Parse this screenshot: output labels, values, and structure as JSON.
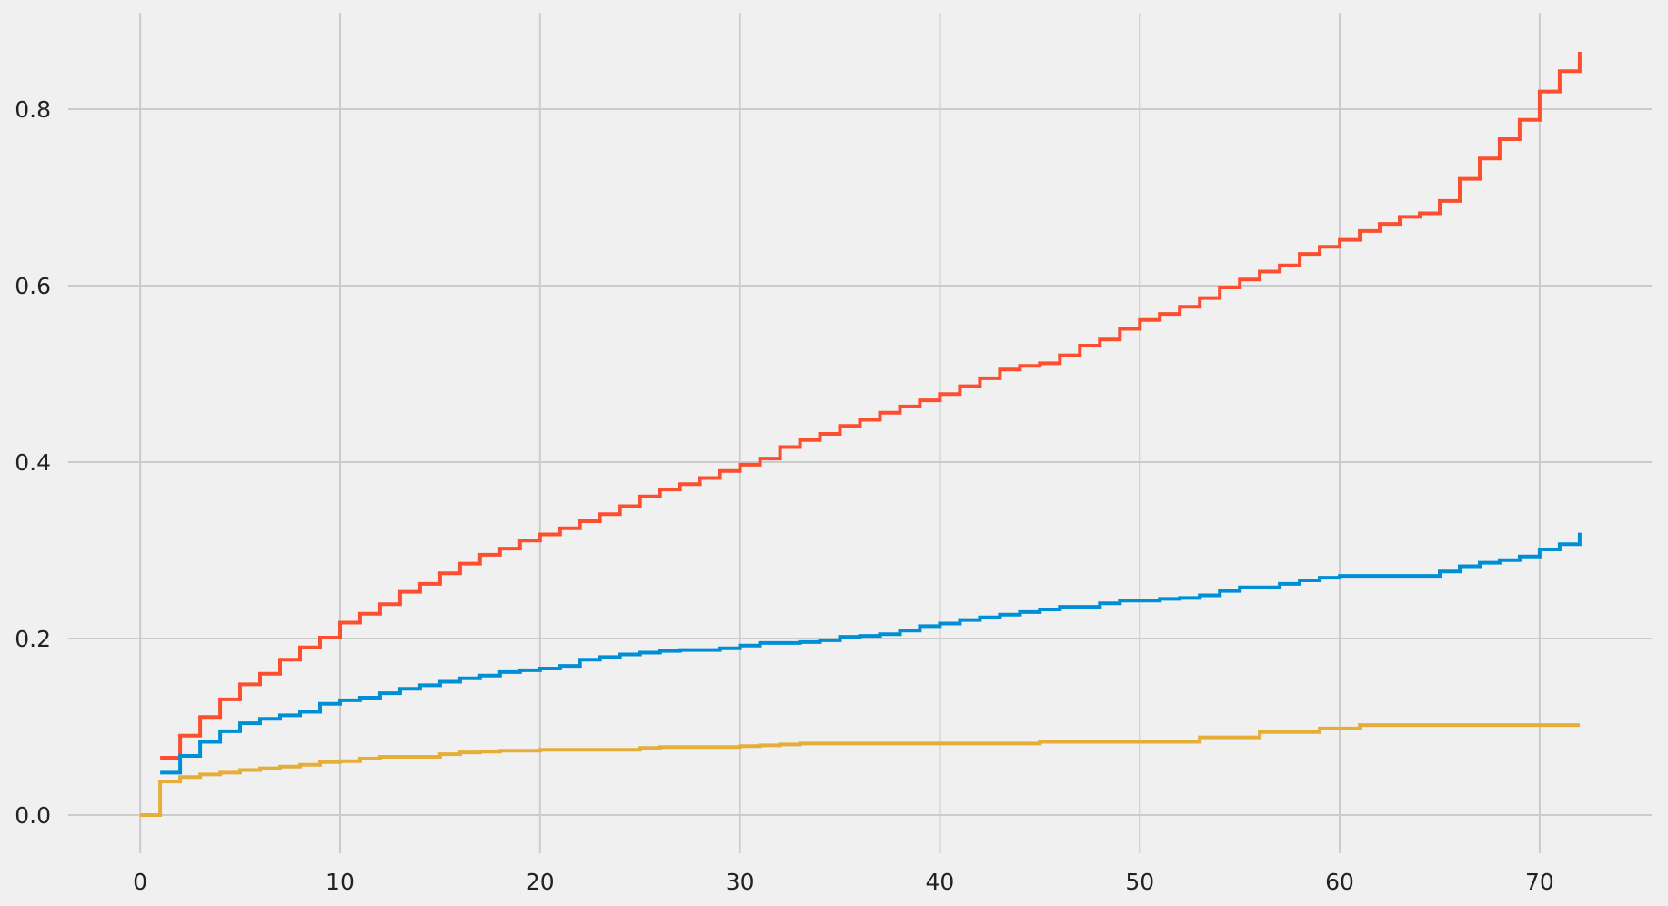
{
  "chart_data": {
    "type": "line",
    "step": "post",
    "title": "",
    "xlabel": "",
    "ylabel": "",
    "xlim": [
      -3.6,
      75.6
    ],
    "ylim": [
      -0.0433,
      0.9093
    ],
    "grid": true,
    "legend": "none",
    "xticks": [
      0,
      10,
      20,
      30,
      40,
      50,
      60,
      70
    ],
    "xtick_labels": [
      "0",
      "10",
      "20",
      "30",
      "40",
      "50",
      "60",
      "70"
    ],
    "yticks": [
      0.0,
      0.2,
      0.4,
      0.6,
      0.8
    ],
    "ytick_labels": [
      "0.0",
      "0.2",
      "0.4",
      "0.6",
      "0.8"
    ],
    "colors": {
      "background": "#f0f0f0",
      "grid": "#cbcbcb",
      "text": "#222222"
    },
    "series": [
      {
        "color": "#fc4f30",
        "x": [
          1,
          2,
          3,
          4,
          5,
          6,
          7,
          8,
          9,
          10,
          11,
          12,
          13,
          14,
          15,
          16,
          17,
          18,
          19,
          20,
          21,
          22,
          23,
          24,
          25,
          26,
          27,
          28,
          29,
          30,
          31,
          32,
          33,
          34,
          35,
          36,
          37,
          38,
          39,
          40,
          41,
          42,
          43,
          44,
          45,
          46,
          47,
          48,
          49,
          50,
          51,
          52,
          53,
          54,
          55,
          56,
          57,
          58,
          59,
          60,
          61,
          62,
          63,
          64,
          65,
          66,
          67,
          68,
          69,
          70,
          71,
          72
        ],
        "y": [
          0.065,
          0.09,
          0.111,
          0.131,
          0.148,
          0.16,
          0.176,
          0.19,
          0.201,
          0.218,
          0.228,
          0.239,
          0.253,
          0.262,
          0.274,
          0.285,
          0.295,
          0.302,
          0.311,
          0.318,
          0.325,
          0.333,
          0.341,
          0.35,
          0.361,
          0.369,
          0.375,
          0.382,
          0.39,
          0.397,
          0.404,
          0.417,
          0.425,
          0.432,
          0.441,
          0.448,
          0.456,
          0.463,
          0.47,
          0.477,
          0.486,
          0.495,
          0.505,
          0.509,
          0.512,
          0.521,
          0.532,
          0.539,
          0.551,
          0.561,
          0.568,
          0.576,
          0.586,
          0.598,
          0.607,
          0.616,
          0.623,
          0.636,
          0.644,
          0.652,
          0.662,
          0.67,
          0.678,
          0.682,
          0.696,
          0.721,
          0.744,
          0.766,
          0.788,
          0.82,
          0.843,
          0.865
        ]
      },
      {
        "color": "#008fd5",
        "x": [
          1,
          2,
          3,
          4,
          5,
          6,
          7,
          8,
          9,
          10,
          11,
          12,
          13,
          14,
          15,
          16,
          17,
          18,
          19,
          20,
          21,
          22,
          23,
          24,
          25,
          26,
          27,
          28,
          29,
          30,
          31,
          32,
          33,
          34,
          35,
          36,
          37,
          38,
          39,
          40,
          41,
          42,
          43,
          44,
          45,
          46,
          47,
          48,
          49,
          50,
          51,
          52,
          53,
          54,
          55,
          56,
          57,
          58,
          59,
          60,
          61,
          62,
          63,
          64,
          65,
          66,
          67,
          68,
          69,
          70,
          71,
          72
        ],
        "y": [
          0.048,
          0.067,
          0.083,
          0.095,
          0.104,
          0.109,
          0.113,
          0.117,
          0.126,
          0.13,
          0.133,
          0.138,
          0.143,
          0.147,
          0.151,
          0.155,
          0.158,
          0.162,
          0.164,
          0.166,
          0.169,
          0.176,
          0.179,
          0.182,
          0.184,
          0.186,
          0.187,
          0.187,
          0.189,
          0.192,
          0.195,
          0.195,
          0.196,
          0.198,
          0.202,
          0.203,
          0.205,
          0.209,
          0.214,
          0.217,
          0.221,
          0.224,
          0.227,
          0.23,
          0.233,
          0.236,
          0.236,
          0.24,
          0.243,
          0.243,
          0.245,
          0.246,
          0.249,
          0.254,
          0.258,
          0.258,
          0.262,
          0.266,
          0.269,
          0.271,
          0.271,
          0.271,
          0.271,
          0.271,
          0.276,
          0.282,
          0.286,
          0.289,
          0.293,
          0.301,
          0.307,
          0.32
        ]
      },
      {
        "color": "#e5ae38",
        "x": [
          0,
          1,
          2,
          3,
          4,
          5,
          6,
          7,
          8,
          9,
          10,
          11,
          12,
          13,
          14,
          15,
          16,
          17,
          18,
          19,
          20,
          21,
          22,
          23,
          24,
          25,
          26,
          27,
          28,
          29,
          30,
          31,
          32,
          33,
          34,
          35,
          36,
          37,
          38,
          39,
          40,
          41,
          42,
          43,
          44,
          45,
          46,
          47,
          48,
          49,
          50,
          51,
          52,
          53,
          54,
          55,
          56,
          57,
          58,
          59,
          60,
          61,
          62,
          63,
          64,
          65,
          66,
          67,
          68,
          69,
          70,
          71,
          72
        ],
        "y": [
          0.0,
          0.038,
          0.043,
          0.046,
          0.048,
          0.051,
          0.053,
          0.055,
          0.057,
          0.06,
          0.061,
          0.064,
          0.066,
          0.066,
          0.066,
          0.069,
          0.071,
          0.072,
          0.073,
          0.073,
          0.074,
          0.074,
          0.074,
          0.074,
          0.074,
          0.076,
          0.077,
          0.077,
          0.077,
          0.077,
          0.078,
          0.079,
          0.08,
          0.081,
          0.081,
          0.081,
          0.081,
          0.081,
          0.081,
          0.081,
          0.081,
          0.081,
          0.081,
          0.081,
          0.081,
          0.083,
          0.083,
          0.083,
          0.083,
          0.083,
          0.083,
          0.083,
          0.083,
          0.088,
          0.088,
          0.088,
          0.094,
          0.094,
          0.094,
          0.098,
          0.098,
          0.102,
          0.102,
          0.102,
          0.102,
          0.102,
          0.102,
          0.102,
          0.102,
          0.102,
          0.102,
          0.102,
          0.102
        ]
      }
    ]
  }
}
